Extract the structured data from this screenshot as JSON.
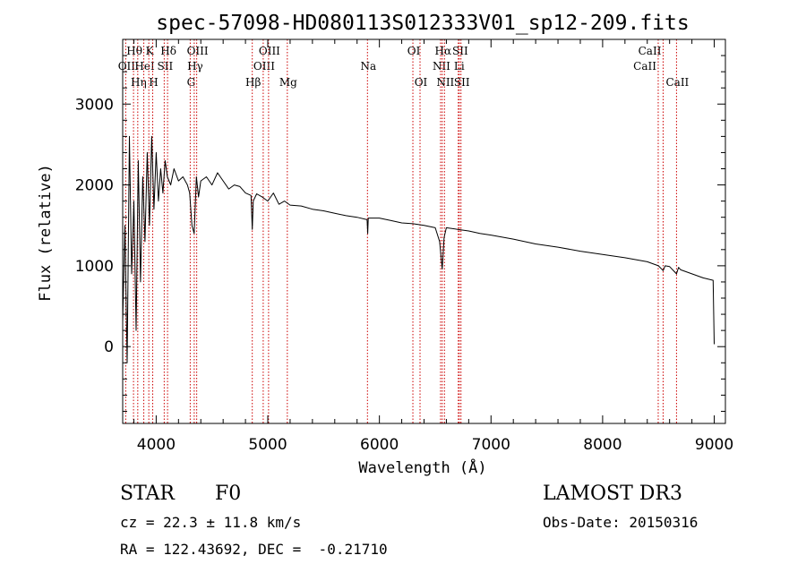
{
  "chart_data": {
    "type": "line",
    "title": "spec-57098-HD080113S012333V01_sp12-209.fits",
    "xlabel": "Wavelength (Å)",
    "ylabel": "Flux (relative)",
    "xlim": [
      3700,
      9100
    ],
    "ylim": [
      -950,
      3800
    ],
    "xticks": [
      4000,
      5000,
      6000,
      7000,
      8000,
      9000
    ],
    "yticks": [
      0,
      1000,
      2000,
      3000
    ],
    "grid": false,
    "series": [
      {
        "name": "flux",
        "x": [
          3700,
          3720,
          3740,
          3760,
          3780,
          3800,
          3820,
          3840,
          3860,
          3880,
          3900,
          3920,
          3940,
          3960,
          3980,
          4000,
          4020,
          4040,
          4060,
          4080,
          4100,
          4130,
          4160,
          4200,
          4240,
          4280,
          4300,
          4320,
          4340,
          4360,
          4380,
          4400,
          4450,
          4500,
          4550,
          4600,
          4650,
          4700,
          4750,
          4800,
          4850,
          4861,
          4870,
          4900,
          4950,
          5000,
          5050,
          5100,
          5150,
          5200,
          5300,
          5400,
          5500,
          5600,
          5700,
          5800,
          5890,
          5895,
          5900,
          6000,
          6100,
          6200,
          6300,
          6400,
          6500,
          6540,
          6563,
          6580,
          6600,
          6700,
          6800,
          6900,
          7000,
          7200,
          7400,
          7600,
          7800,
          8000,
          8200,
          8400,
          8500,
          8542,
          8560,
          8600,
          8662,
          8680,
          8700,
          8800,
          8900,
          8990,
          9000
        ],
        "values": [
          300,
          1500,
          -200,
          2600,
          900,
          1800,
          200,
          2300,
          800,
          2100,
          1300,
          2400,
          1500,
          2600,
          1700,
          2400,
          1800,
          2200,
          1900,
          2300,
          2100,
          2000,
          2200,
          2050,
          2100,
          2000,
          1900,
          1500,
          1400,
          2100,
          1850,
          2050,
          2100,
          2000,
          2150,
          2050,
          1950,
          2000,
          1980,
          1900,
          1870,
          1450,
          1800,
          1890,
          1850,
          1800,
          1900,
          1760,
          1800,
          1750,
          1740,
          1700,
          1680,
          1650,
          1620,
          1600,
          1570,
          1400,
          1590,
          1590,
          1560,
          1530,
          1520,
          1500,
          1470,
          1300,
          960,
          1350,
          1470,
          1450,
          1430,
          1400,
          1380,
          1330,
          1270,
          1230,
          1180,
          1140,
          1100,
          1050,
          1000,
          940,
          1000,
          990,
          900,
          980,
          950,
          900,
          850,
          820,
          30
        ]
      }
    ],
    "lines": [
      {
        "name": "OII",
        "x": 3727,
        "row": 2,
        "cls": "lt"
      },
      {
        "name": "Hθ",
        "x": 3797,
        "row": 1,
        "cls": "lt"
      },
      {
        "name": "Hη",
        "x": 3835,
        "row": 3,
        "cls": "lt"
      },
      {
        "name": "HeI",
        "x": 3889,
        "row": 2,
        "cls": "lt"
      },
      {
        "name": "K",
        "x": 3934,
        "row": 1,
        "cls": "lt"
      },
      {
        "name": "H",
        "x": 3969,
        "row": 3,
        "cls": "lt"
      },
      {
        "name": "SII",
        "x": 4072,
        "row": 2,
        "cls": "lt"
      },
      {
        "name": "Hδ",
        "x": 4102,
        "row": 1,
        "cls": "lt"
      },
      {
        "name": "G",
        "x": 4305,
        "row": 3,
        "cls": "lt"
      },
      {
        "name": "Hγ",
        "x": 4341,
        "row": 2,
        "cls": "lt"
      },
      {
        "name": "OIII",
        "x": 4363,
        "row": 1,
        "cls": "lt"
      },
      {
        "name": "Hβ",
        "x": 4861,
        "row": 3,
        "cls": "lt"
      },
      {
        "name": "OIII",
        "x": 4959,
        "row": 2,
        "cls": "lt"
      },
      {
        "name": "OIII",
        "x": 5007,
        "row": 1,
        "cls": "lt"
      },
      {
        "name": "Mg",
        "x": 5175,
        "row": 3,
        "cls": "lt"
      },
      {
        "name": "Na",
        "x": 5893,
        "row": 2,
        "cls": "lt"
      },
      {
        "name": "OI",
        "x": 6300,
        "row": 1,
        "cls": "lt"
      },
      {
        "name": "OI",
        "x": 6364,
        "row": 3,
        "cls": "lt"
      },
      {
        "name": "NII",
        "x": 6548,
        "row": 2,
        "cls": "lt"
      },
      {
        "name": "Hα",
        "x": 6563,
        "row": 1,
        "cls": "lt"
      },
      {
        "name": "NII",
        "x": 6583,
        "row": 3,
        "cls": "lt"
      },
      {
        "name": "Li",
        "x": 6707,
        "row": 2,
        "cls": "lt"
      },
      {
        "name": "SII",
        "x": 6716,
        "row": 1,
        "cls": "lt"
      },
      {
        "name": "SII",
        "x": 6731,
        "row": 3,
        "cls": "lt"
      },
      {
        "name": "CaII",
        "x": 8498,
        "row": 2,
        "cls": "rt"
      },
      {
        "name": "CaII",
        "x": 8542,
        "row": 1,
        "cls": "rt"
      },
      {
        "name": "CaII",
        "x": 8662,
        "row": 3,
        "cls": "lt"
      }
    ],
    "colors": {
      "spectrum": "#000000",
      "line_marker": "#cc0000",
      "axes": "#000000",
      "background": "#ffffff"
    }
  },
  "info": {
    "type_label": "STAR",
    "subclass": "F0",
    "survey": "LAMOST DR3",
    "cz": "cz = 22.3 ± 11.8 km/s",
    "obs_date": "Obs-Date: 20150316",
    "coords": "RA = 122.43692, DEC =  -0.21710"
  }
}
